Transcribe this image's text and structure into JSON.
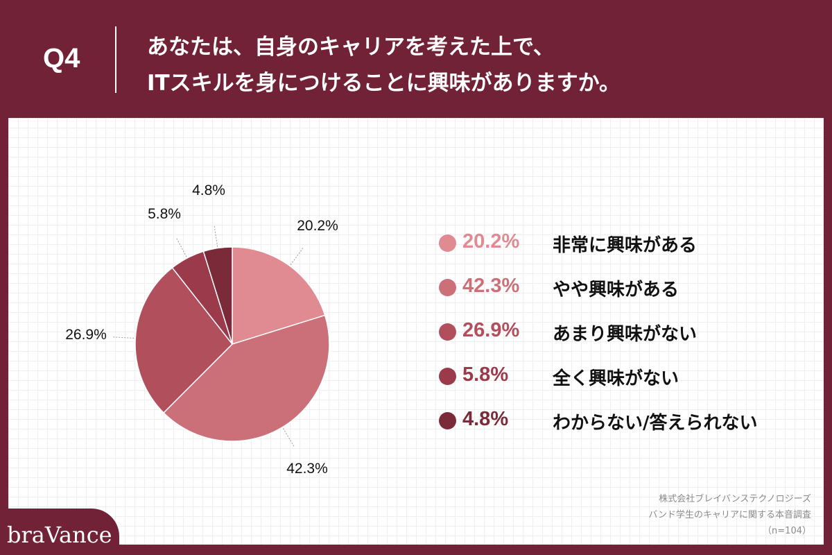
{
  "header": {
    "question_number": "Q4",
    "question_lines": [
      "あなたは、自身のキャリアを考えた上で、",
      "ITスキルを身につけることに興味がありますか。"
    ]
  },
  "chart_data": {
    "type": "pie",
    "title": "",
    "slices": [
      {
        "label": "非常に興味がある",
        "value": 20.2,
        "value_label": "20.2%",
        "color": "#e08a91"
      },
      {
        "label": "やや興味がある",
        "value": 42.3,
        "value_label": "42.3%",
        "color": "#cb6f79"
      },
      {
        "label": "あまり興味がない",
        "value": 26.9,
        "value_label": "26.9%",
        "color": "#b24f5c"
      },
      {
        "label": "全く興味がない",
        "value": 5.8,
        "value_label": "5.8%",
        "color": "#9a3a4a"
      },
      {
        "label": "わからない/答えられない",
        "value": 4.8,
        "value_label": "4.8%",
        "color": "#7a2a39"
      }
    ],
    "legend_position": "right"
  },
  "source": {
    "lines": [
      "株式会社ブレイバンステクノロジーズ",
      "バンド学生のキャリアに関する本音調査",
      "（n=104）"
    ]
  },
  "logo": {
    "text": "braVance"
  },
  "colors": {
    "brand": "#712237",
    "panel": "#ffffff"
  }
}
